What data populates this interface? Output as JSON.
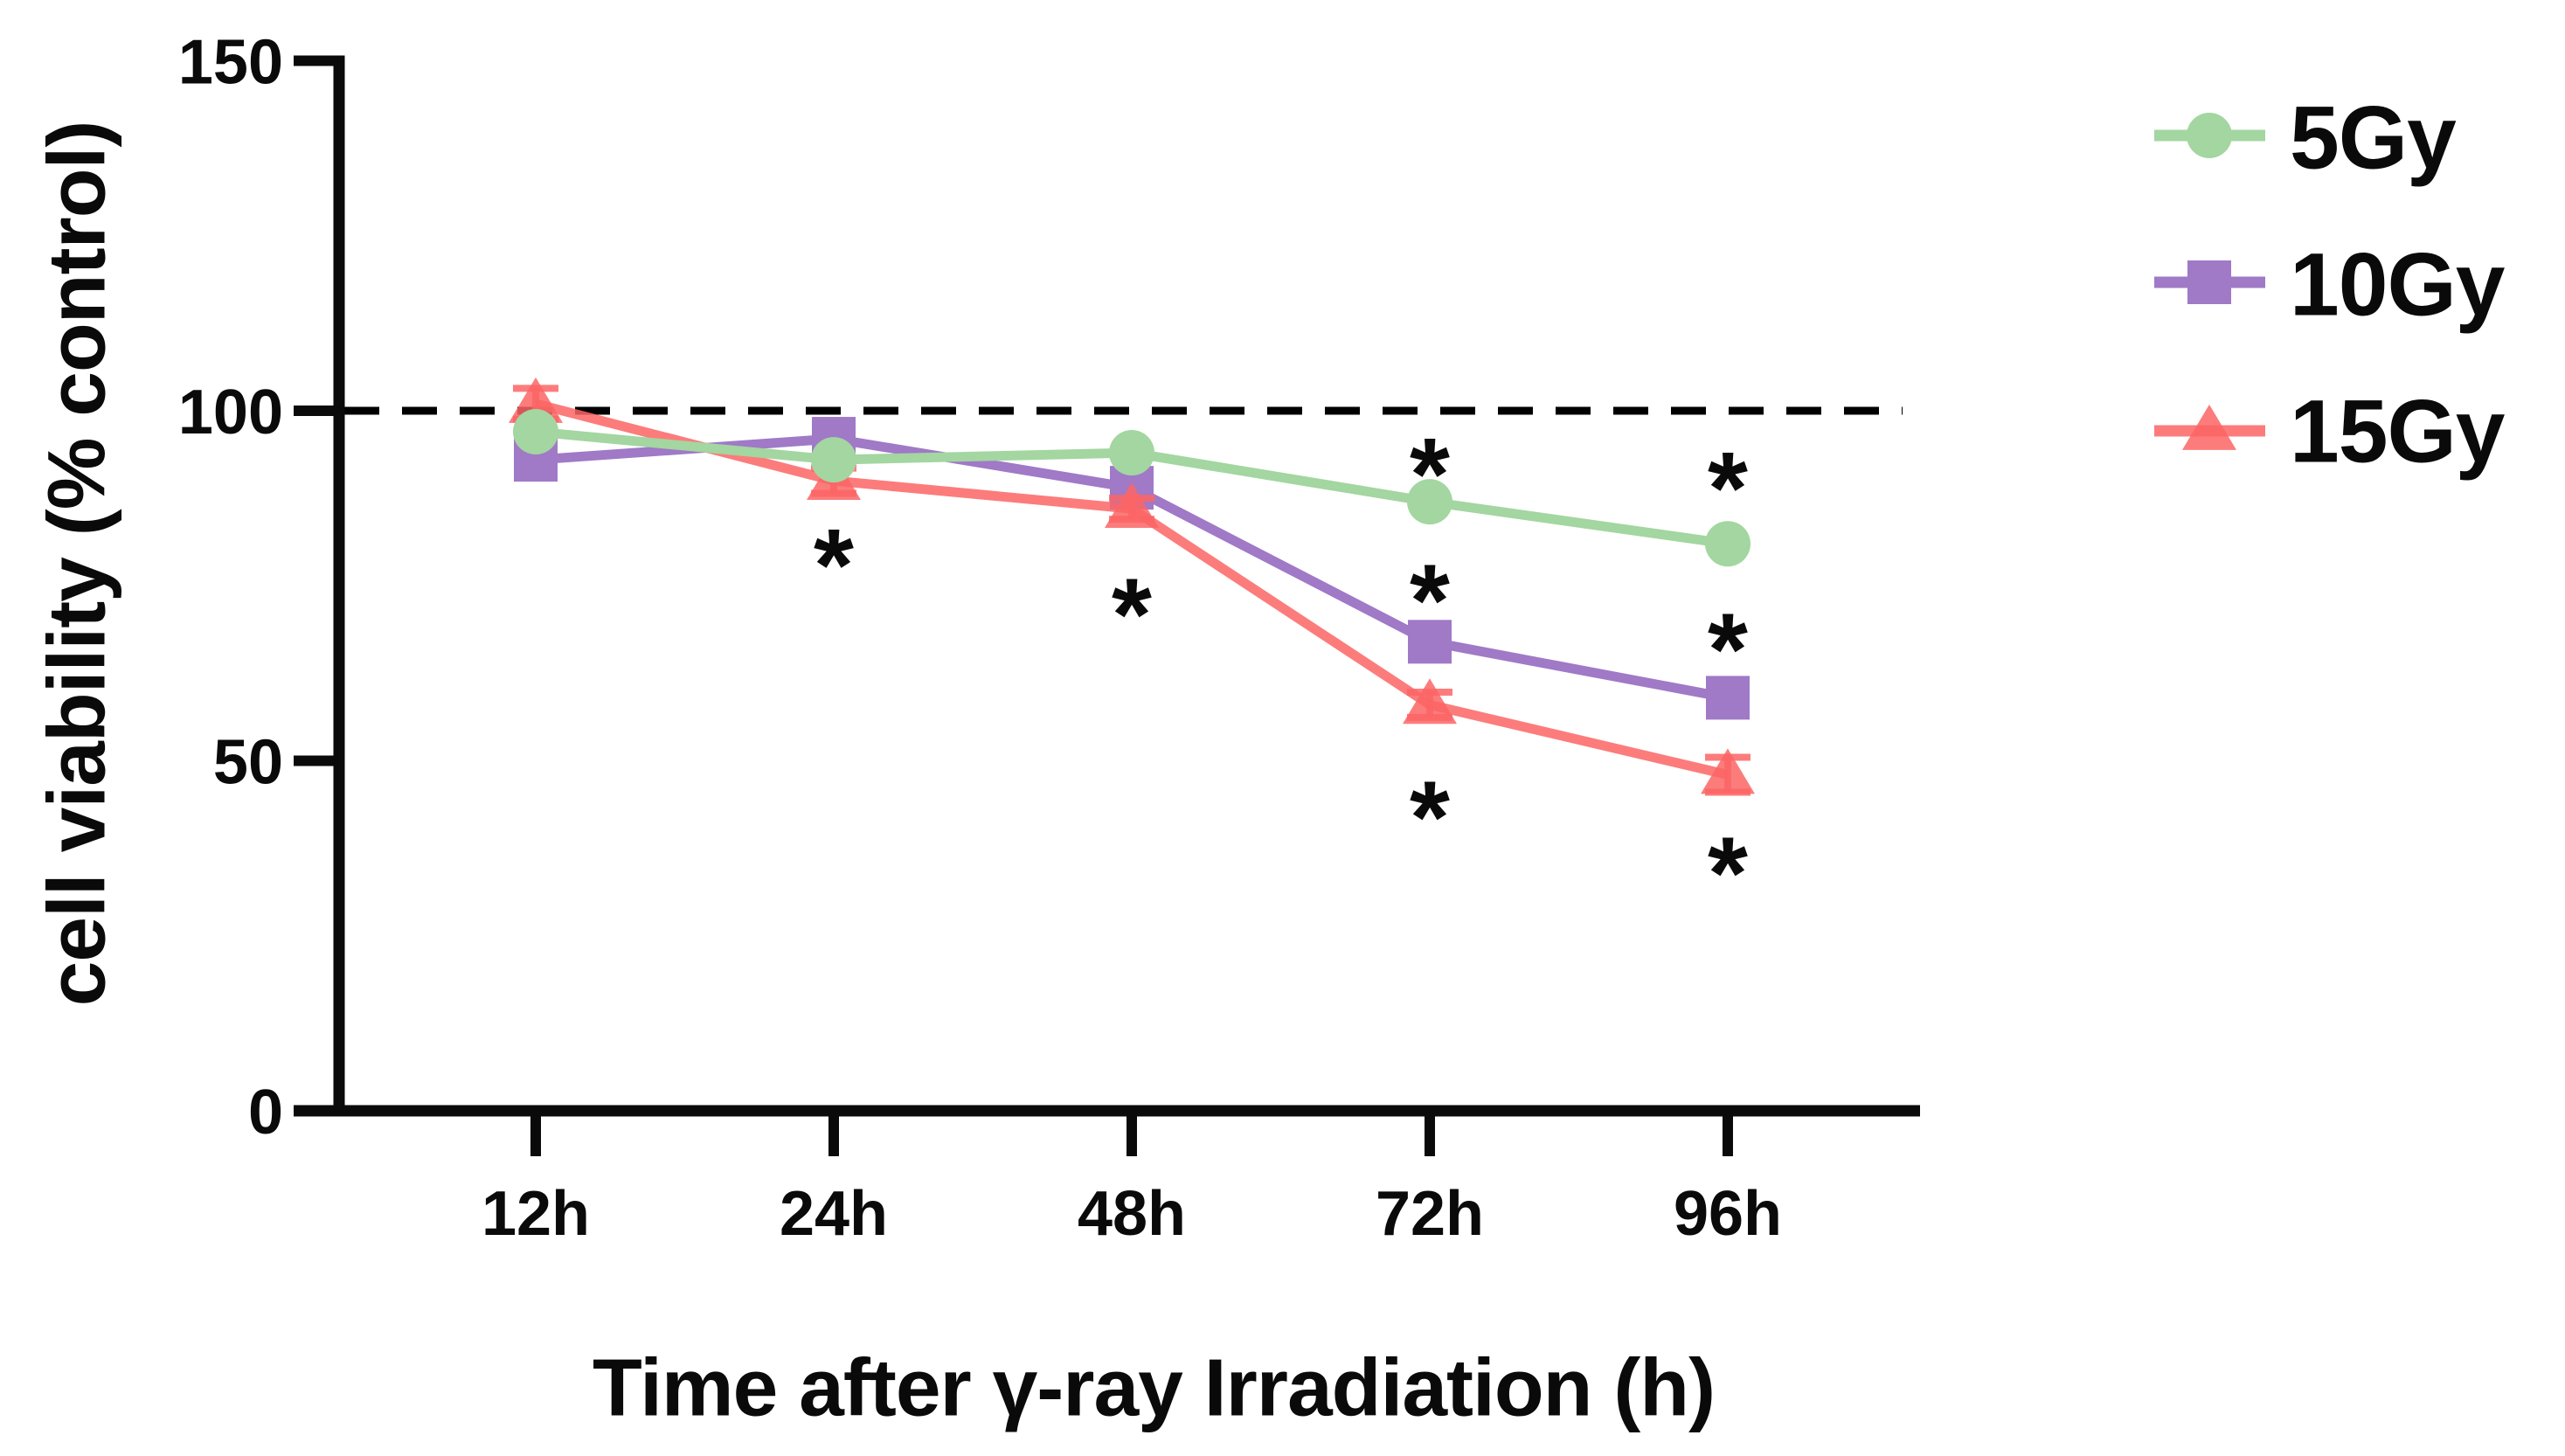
{
  "figure": {
    "background_color": "#ffffff",
    "text_color": "#0a0a0a"
  },
  "chart_data": {
    "type": "line",
    "title": "",
    "xlabel": "Time after γ-ray Irradiation (h)",
    "ylabel": "cell viability (% control)",
    "x_axis_type": "categorical",
    "categories": [
      "12h",
      "24h",
      "48h",
      "72h",
      "96h"
    ],
    "yticks": [
      0,
      50,
      100,
      150
    ],
    "ytick_labels": [
      "0",
      "50",
      "100",
      "150"
    ],
    "ylim": [
      0,
      150
    ],
    "grid": false,
    "legend_position": "right-outside",
    "reference_line": {
      "y": 100,
      "style": "dashed",
      "color": "#000000"
    },
    "series": [
      {
        "name": "5Gy",
        "marker": "circle",
        "color": "#a3d6a0",
        "opacity": 1,
        "values": [
          97,
          93,
          94,
          87,
          81
        ],
        "errors": [
          0,
          0,
          0,
          0,
          0
        ]
      },
      {
        "name": "10Gy",
        "marker": "square",
        "color": "#a079c7",
        "opacity": 1,
        "values": [
          93,
          96,
          89,
          67,
          59
        ],
        "errors": [
          0,
          0,
          0,
          0,
          0
        ]
      },
      {
        "name": "15Gy",
        "marker": "triangle",
        "color": "#fc6565",
        "opacity": 0.85,
        "values": [
          101,
          90,
          86,
          58,
          48
        ],
        "errors": [
          2.2,
          1.8,
          1.5,
          1.8,
          2.5
        ]
      }
    ],
    "annotations": [
      {
        "category": "24h",
        "y": 80,
        "symbol": "*",
        "meaning": "significant vs control"
      },
      {
        "category": "48h",
        "y": 73,
        "symbol": "*",
        "meaning": "significant vs control"
      },
      {
        "category": "72h",
        "y": 93,
        "symbol": "*",
        "meaning": "significant vs control"
      },
      {
        "category": "72h",
        "y": 75,
        "symbol": "*",
        "meaning": "significant vs control"
      },
      {
        "category": "72h",
        "y": 44,
        "symbol": "*",
        "meaning": "significant vs control"
      },
      {
        "category": "96h",
        "y": 91,
        "symbol": "*",
        "meaning": "significant vs control"
      },
      {
        "category": "96h",
        "y": 68,
        "symbol": "*",
        "meaning": "significant vs control"
      },
      {
        "category": "96h",
        "y": 36,
        "symbol": "*",
        "meaning": "significant vs control"
      }
    ]
  }
}
